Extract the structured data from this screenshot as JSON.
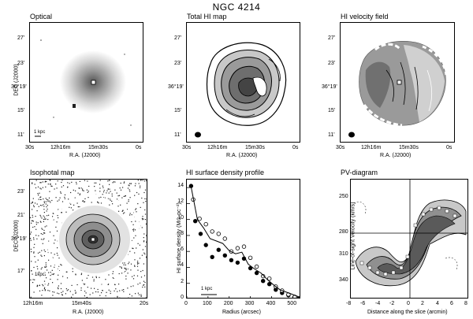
{
  "figure": {
    "title": "NGC 4214"
  },
  "panels": {
    "optical": {
      "title": "Optical",
      "ylabel": "DEC (J2000)",
      "xlabel": "R.A. (J2000)",
      "yticks": [
        "27'",
        "23'",
        "36°19'",
        "15'",
        "11'"
      ],
      "xticks": [
        "30s",
        "12h16m",
        "15m30s",
        "0s"
      ],
      "scalebar": "1 kpc"
    },
    "total_hi": {
      "title": "Total HI map",
      "xlabel": "R.A. (J2000)",
      "yticks": [
        "27'",
        "23'",
        "36°19'",
        "15'",
        "11'"
      ],
      "xticks": [
        "30s",
        "12h16m",
        "15m30s",
        "0s"
      ]
    },
    "velocity": {
      "title": "HI velocity field",
      "xlabel": "R.A. (J2000)",
      "yticks": [
        "27'",
        "23'",
        "36°19'",
        "15'",
        "11'"
      ],
      "xticks": [
        "30s",
        "12h16m",
        "15m30s",
        "0s"
      ]
    },
    "isophotal": {
      "title": "Isophotal map",
      "ylabel": "DEC (J2000)",
      "xlabel": "R.A. (J2000)",
      "yticks": [
        "23'",
        "21'",
        "36°19'",
        "17'"
      ],
      "xticks": [
        "12h16m",
        "15m40s",
        "20s"
      ],
      "scalebar": "1kpc"
    },
    "pv": {
      "title": "PV-diagram",
      "ylabel": "Line-of-sight Velocity (km/s)",
      "xlabel": "Distance along the slice (arcmin)",
      "yticks": [
        "250",
        "280",
        "310",
        "340"
      ],
      "xticks": [
        "-8",
        "-6",
        "-4",
        "-2",
        "0",
        "2",
        "4",
        "6",
        "8"
      ]
    }
  },
  "chart_data": {
    "type": "scatter",
    "title": "HI surface density profile",
    "xlabel": "Radius (arcsec)",
    "ylabel": "HI surface density (M⊙ pc⁻²)",
    "xlim": [
      0,
      540
    ],
    "ylim": [
      0,
      15
    ],
    "xticks": [
      0,
      100,
      200,
      300,
      400,
      500
    ],
    "yticks": [
      0,
      2,
      4,
      6,
      8,
      10,
      12,
      14
    ],
    "xticklabels": [
      "0",
      "100",
      "200",
      "300",
      "400",
      "500"
    ],
    "yticklabels": [
      "0",
      "2",
      "4",
      "6",
      "8",
      "10",
      "12",
      "14"
    ],
    "annotation": "1 kpc",
    "series": [
      {
        "marker": "filled",
        "x": [
          20,
          40,
          65,
          90,
          120,
          150,
          180,
          210,
          240,
          270,
          300,
          330,
          360,
          390,
          420,
          450,
          480,
          510,
          530
        ],
        "y": [
          14.2,
          9.8,
          8.2,
          6.8,
          5.3,
          6.2,
          5.5,
          4.9,
          4.6,
          5.1,
          3.9,
          3.3,
          2.3,
          1.9,
          1.2,
          0.8,
          0.5,
          0.3,
          0.1
        ]
      },
      {
        "marker": "open",
        "x": [
          30,
          60,
          90,
          120,
          150,
          180,
          210,
          240,
          270,
          300,
          330,
          360,
          390,
          420,
          450,
          480,
          510
        ],
        "y": [
          12.5,
          10.1,
          9.4,
          8.5,
          8.2,
          7.6,
          6.0,
          6.4,
          6.6,
          5.2,
          4.1,
          2.9,
          2.6,
          1.6,
          1.1,
          0.6,
          0.3
        ]
      },
      {
        "marker": "line",
        "x": [
          20,
          50,
          80,
          110,
          140,
          170,
          200,
          230,
          260,
          290,
          320,
          350,
          380,
          410,
          440,
          470,
          500,
          530
        ],
        "y": [
          14.1,
          10.0,
          8.9,
          7.6,
          7.3,
          7.0,
          6.1,
          5.7,
          5.9,
          4.4,
          3.8,
          3.3,
          2.5,
          1.8,
          1.2,
          0.9,
          0.6,
          0.3
        ]
      }
    ]
  }
}
